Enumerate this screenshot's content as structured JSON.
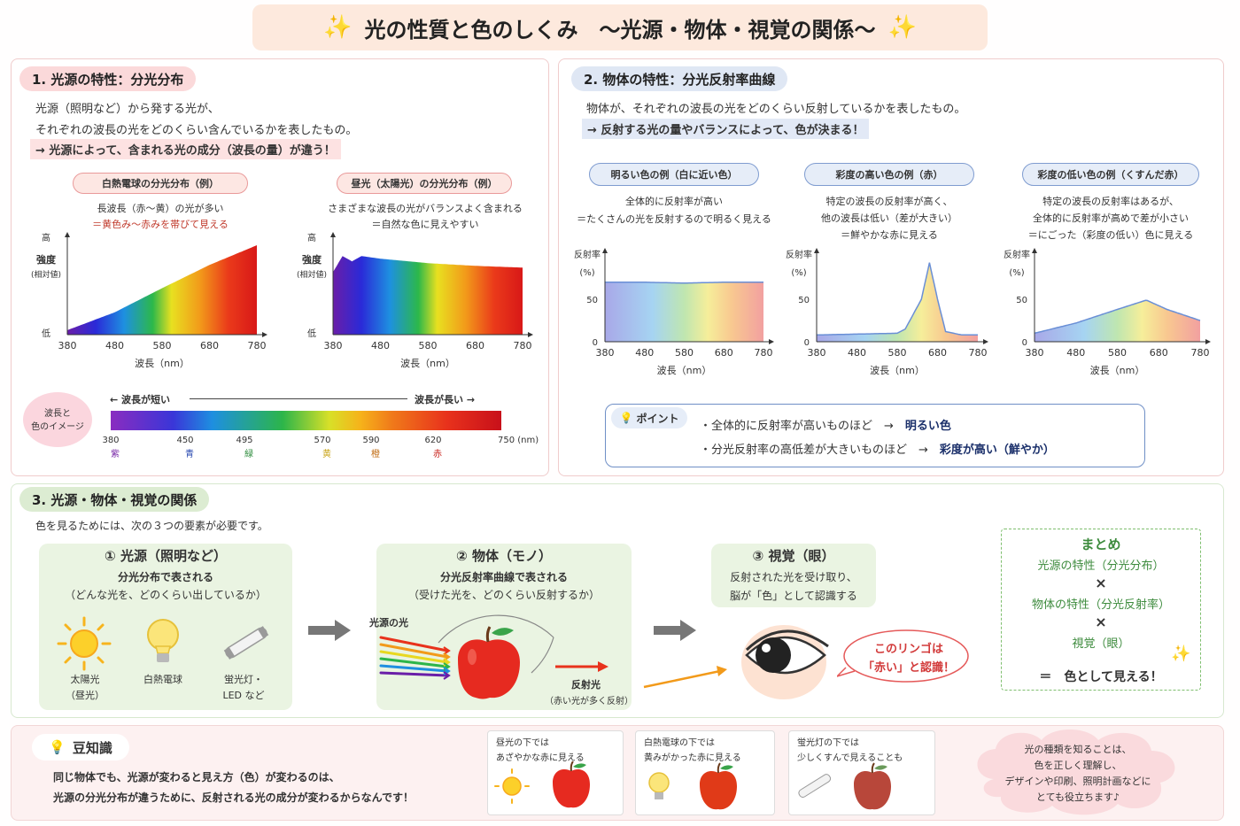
{
  "title": {
    "text": "光の性質と色のしくみ　～光源・物体・視覚の関係～"
  },
  "s1": {
    "heading": "1.  光源の特性：分光分布",
    "line1": "光源（照明など）から発する光が、",
    "line2": "それぞれの波長の光をどのくらい含んでいるかを表したもの。",
    "line3": "→  光源によって、含まれる光の成分（波長の量）が違う！",
    "bulb": {
      "title": "白熱電球の分光分布（例）",
      "d1": "長波長（赤～黄）の光が多い",
      "d2": "＝黄色み～赤みを帯びて見える"
    },
    "sun": {
      "title": "昼光（太陽光）の分光分布（例）",
      "d1": "さまざまな波長の光がバランスよく含まれる",
      "d2": "＝自然な色に見えやすい"
    },
    "ylabel_high": "高",
    "ylabel_low": "低",
    "ylabel": "強度",
    "ylabel_sub": "(相対値)",
    "xlabel": "波長（nm）",
    "xticks": [
      "380",
      "480",
      "580",
      "680",
      "780"
    ],
    "scale": {
      "bubble1": "波長と",
      "bubble2": "色のイメージ",
      "short": "←  波長が短い",
      "long": "波長が長い  →",
      "ticks": [
        "380",
        "450",
        "495",
        "570",
        "590",
        "620",
        "750 (nm)"
      ],
      "colors": [
        "紫",
        "青",
        "緑",
        "黄",
        "橙",
        "赤"
      ]
    }
  },
  "s2": {
    "heading": "2.  物体の特性：分光反射率曲線",
    "line1": "物体が、それぞれの波長の光をどのくらい反射しているかを表したもの。",
    "line2": "→  反射する光の量やバランスによって、色が決まる！",
    "white": {
      "title": "明るい色の例（白に近い色）",
      "d1": "全体的に反射率が高い",
      "d2": "＝たくさんの光を反射するので明るく見える"
    },
    "red": {
      "title": "彩度の高い色の例（赤）",
      "d1": "特定の波長の反射率が高く、",
      "d2": "他の波長は低い（差が大きい）",
      "d3": "＝鮮やかな赤に見える"
    },
    "dull": {
      "title": "彩度の低い色の例（くすんだ赤）",
      "d1": "特定の波長の反射率はあるが、",
      "d2": "全体的に反射率が高めで差が小さい",
      "d3": "＝にごった（彩度の低い）色に見える"
    },
    "ylabel": "反射率",
    "yunit": "(%)",
    "y50": "50",
    "y0": "0",
    "xlabel": "波長（nm）",
    "xticks": [
      "380",
      "480",
      "580",
      "680",
      "780"
    ],
    "point": {
      "label": "ポイント",
      "p1a": "・全体的に反射率が高いものほど　→　",
      "p1b": "明るい色",
      "p2a": "・分光反射率の高低差が大きいものほど　→　",
      "p2b": "彩度が高い（鮮やか）"
    }
  },
  "s3": {
    "heading": "3.  光源・物体・視覚の関係",
    "intro": "色を見るためには、次の３つの要素が必要です。",
    "src": {
      "title": "①  光源（照明など）",
      "d1": "分光分布で表される",
      "d2": "（どんな光を、どのくらい出しているか）",
      "sun1": "太陽光",
      "sun2": "（昼光）",
      "bulb": "白熱電球",
      "fl1": "蛍光灯・",
      "fl2": "LED など"
    },
    "obj": {
      "title": "②  物体（モノ）",
      "d1": "分光反射率曲線で表される",
      "d2": "（受けた光を、どのくらい反射するか）",
      "incoming": "光源の光",
      "reflect": "反射光",
      "reflect2": "（赤い光が多く反射）"
    },
    "vis": {
      "title": "③  視覚（眼）",
      "d1": "反射された光を受け取り、",
      "d2": "脳が「色」として認識する",
      "bubble1": "このリンゴは",
      "bubble2": "「赤い」と認識！"
    },
    "summary": {
      "title": "まとめ",
      "l1": "光源の特性（分光分布）",
      "x1": "×",
      "l2": "物体の特性（分光反射率）",
      "x2": "×",
      "l3": "視覚（眼）",
      "eq": "＝　色として見える！"
    }
  },
  "trivia": {
    "heading": "豆知識",
    "line1": "同じ物体でも、光源が変わると見え方（色）が変わるのは、",
    "line2": "光源の分光分布が違うために、反射される光の成分が変わるからなんです！",
    "c1a": "昼光の下では",
    "c1b": "あざやかな赤に見える",
    "c2a": "白熱電球の下では",
    "c2b": "黄みがかった赤に見える",
    "c3a": "蛍光灯の下では",
    "c3b": "少しくすんで見えることも",
    "cloud1": "光の種類を知ることは、",
    "cloud2": "色を正しく理解し、",
    "cloud3": "デザインや印刷、照明計画などに",
    "cloud4": "とても役立ちます♪"
  },
  "chart_data": [
    {
      "type": "area",
      "title": "白熱電球の分光分布（例）",
      "x": [
        380,
        480,
        580,
        680,
        780
      ],
      "y": [
        5,
        25,
        52,
        78,
        100
      ],
      "xlabel": "波長（nm）",
      "ylabel": "強度(相対値)"
    },
    {
      "type": "area",
      "title": "昼光（太陽光）の分光分布（例）",
      "x": [
        380,
        400,
        420,
        440,
        480,
        580,
        680,
        780
      ],
      "y": [
        70,
        88,
        82,
        88,
        85,
        80,
        77,
        75
      ],
      "xlabel": "波長（nm）",
      "ylabel": "強度(相対値)"
    },
    {
      "type": "area",
      "title": "明るい色の例（白に近い色）",
      "x": [
        380,
        480,
        580,
        680,
        780
      ],
      "y": [
        70,
        70,
        69,
        70,
        70
      ],
      "ylim": [
        0,
        100
      ],
      "xlabel": "波長（nm）",
      "ylabel": "反射率(%)"
    },
    {
      "type": "area",
      "title": "彩度の高い色の例（赤）",
      "x": [
        380,
        480,
        580,
        600,
        640,
        660,
        680,
        700,
        740,
        780
      ],
      "y": [
        8,
        9,
        10,
        15,
        50,
        93,
        50,
        12,
        8,
        8
      ],
      "ylim": [
        0,
        100
      ],
      "xlabel": "波長（nm）",
      "ylabel": "反射率(%)"
    },
    {
      "type": "area",
      "title": "彩度の低い色の例（くすんだ赤）",
      "x": [
        380,
        480,
        580,
        650,
        700,
        780
      ],
      "y": [
        10,
        22,
        38,
        49,
        38,
        25
      ],
      "ylim": [
        0,
        100
      ],
      "xlabel": "波長（nm）",
      "ylabel": "反射率(%)"
    }
  ],
  "colors": {
    "red_text": "#c0392b",
    "navy": "#1a2f6a",
    "green_text": "#3d8b3d"
  }
}
